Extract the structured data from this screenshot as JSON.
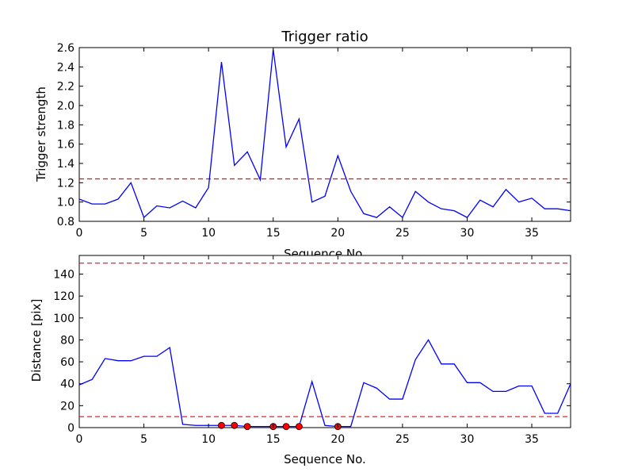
{
  "chart_data": [
    {
      "type": "line",
      "title": "Trigger ratio",
      "xlabel": "Sequence No.",
      "ylabel": "Trigger strength",
      "xlim": [
        0,
        38
      ],
      "ylim": [
        0.8,
        2.6
      ],
      "xticks": [
        "0",
        "5",
        "10",
        "15",
        "20",
        "25",
        "30",
        "35"
      ],
      "yticks": [
        "0.8",
        "1.0",
        "1.2",
        "1.4",
        "1.6",
        "1.8",
        "2.0",
        "2.2",
        "2.4",
        "2.6"
      ],
      "grid": false,
      "series": [
        {
          "color": "#0000ff",
          "x": [
            0,
            1,
            2,
            3,
            4,
            5,
            6,
            7,
            8,
            9,
            10,
            11,
            12,
            13,
            14,
            15,
            16,
            17,
            18,
            19,
            20,
            21,
            22,
            23,
            24,
            25,
            26,
            27,
            28,
            29,
            30,
            31,
            32,
            33,
            34,
            35,
            36,
            37,
            38
          ],
          "values": [
            1.03,
            0.98,
            0.98,
            1.03,
            1.2,
            0.84,
            0.96,
            0.94,
            1.01,
            0.94,
            1.15,
            2.45,
            1.38,
            1.52,
            1.23,
            2.58,
            1.57,
            1.86,
            1.0,
            1.06,
            1.48,
            1.11,
            0.88,
            0.84,
            0.95,
            0.84,
            1.11,
            1.0,
            0.93,
            0.91,
            0.84,
            1.02,
            0.95,
            1.13,
            1.0,
            1.04,
            0.93,
            0.93,
            0.91
          ]
        }
      ],
      "hlines": [
        {
          "y": 1.24,
          "color": "#ff0000",
          "style": "dashed"
        }
      ]
    },
    {
      "type": "line",
      "title": "",
      "xlabel": "Sequence No.",
      "ylabel": "Distance [pix]",
      "xlim": [
        0,
        38
      ],
      "ylim": [
        0,
        157
      ],
      "xticks": [
        "0",
        "5",
        "10",
        "15",
        "20",
        "25",
        "30",
        "35"
      ],
      "yticks": [
        "0",
        "20",
        "40",
        "60",
        "80",
        "100",
        "120",
        "140"
      ],
      "grid": false,
      "series": [
        {
          "color": "#0000ff",
          "x": [
            0,
            1,
            2,
            3,
            4,
            5,
            6,
            7,
            8,
            9,
            10,
            11,
            12,
            13,
            14,
            15,
            16,
            17,
            18,
            19,
            20,
            21,
            22,
            23,
            24,
            25,
            26,
            27,
            28,
            29,
            30,
            31,
            32,
            33,
            34,
            35,
            36,
            37,
            38
          ],
          "values": [
            39,
            44,
            63,
            61,
            61,
            65,
            65,
            73,
            3,
            2,
            2,
            2,
            2,
            1,
            1,
            1,
            1,
            1,
            42,
            2,
            1,
            1,
            41,
            36,
            26,
            26,
            62,
            80,
            58,
            58,
            41,
            41,
            33,
            33,
            38,
            38,
            13,
            13,
            40
          ]
        }
      ],
      "markers": {
        "color": "#ff0000",
        "x": [
          11,
          12,
          13,
          15,
          16,
          17,
          20
        ],
        "y": [
          2,
          2,
          1,
          1,
          1,
          1,
          1
        ]
      },
      "hlines": [
        {
          "y": 150,
          "color": "#ff0000",
          "style": "dashed"
        },
        {
          "y": 10,
          "color": "#ff0000",
          "style": "dashed"
        }
      ]
    }
  ]
}
